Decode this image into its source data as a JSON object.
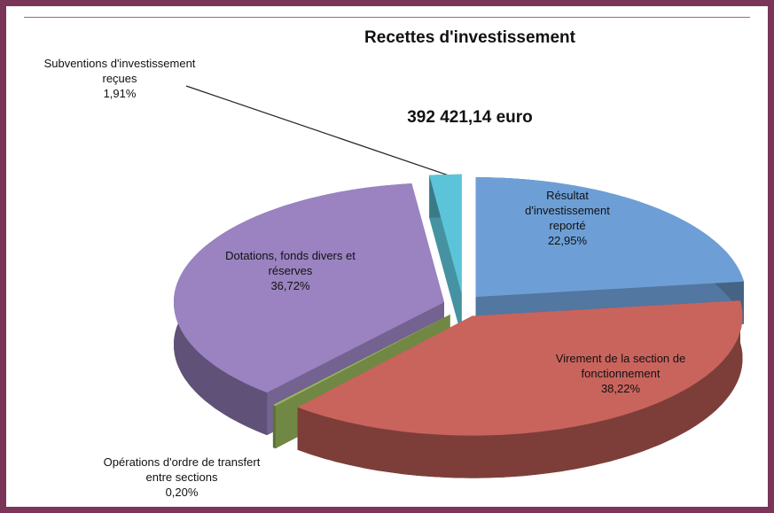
{
  "chart_data": {
    "type": "pie3d",
    "title": "Recettes d'investissement",
    "subtitle": "392 421,14 euro",
    "categories": [
      "Résultat d'investissement reporté",
      "Virement de la section de fonctionnement",
      "Opérations d'ordre de transfert entre sections",
      "Dotations, fonds divers et réserves",
      "Subventions d'investissement reçues"
    ],
    "values": [
      22.95,
      38.22,
      0.2,
      36.72,
      1.91
    ],
    "value_labels": [
      "22,95%",
      "38,22%",
      "0,20%",
      "36,72%",
      "1,91%"
    ],
    "colors": [
      "#6d9fd6",
      "#c9645d",
      "#97b55c",
      "#9a83c0",
      "#5cc4d8"
    ]
  }
}
